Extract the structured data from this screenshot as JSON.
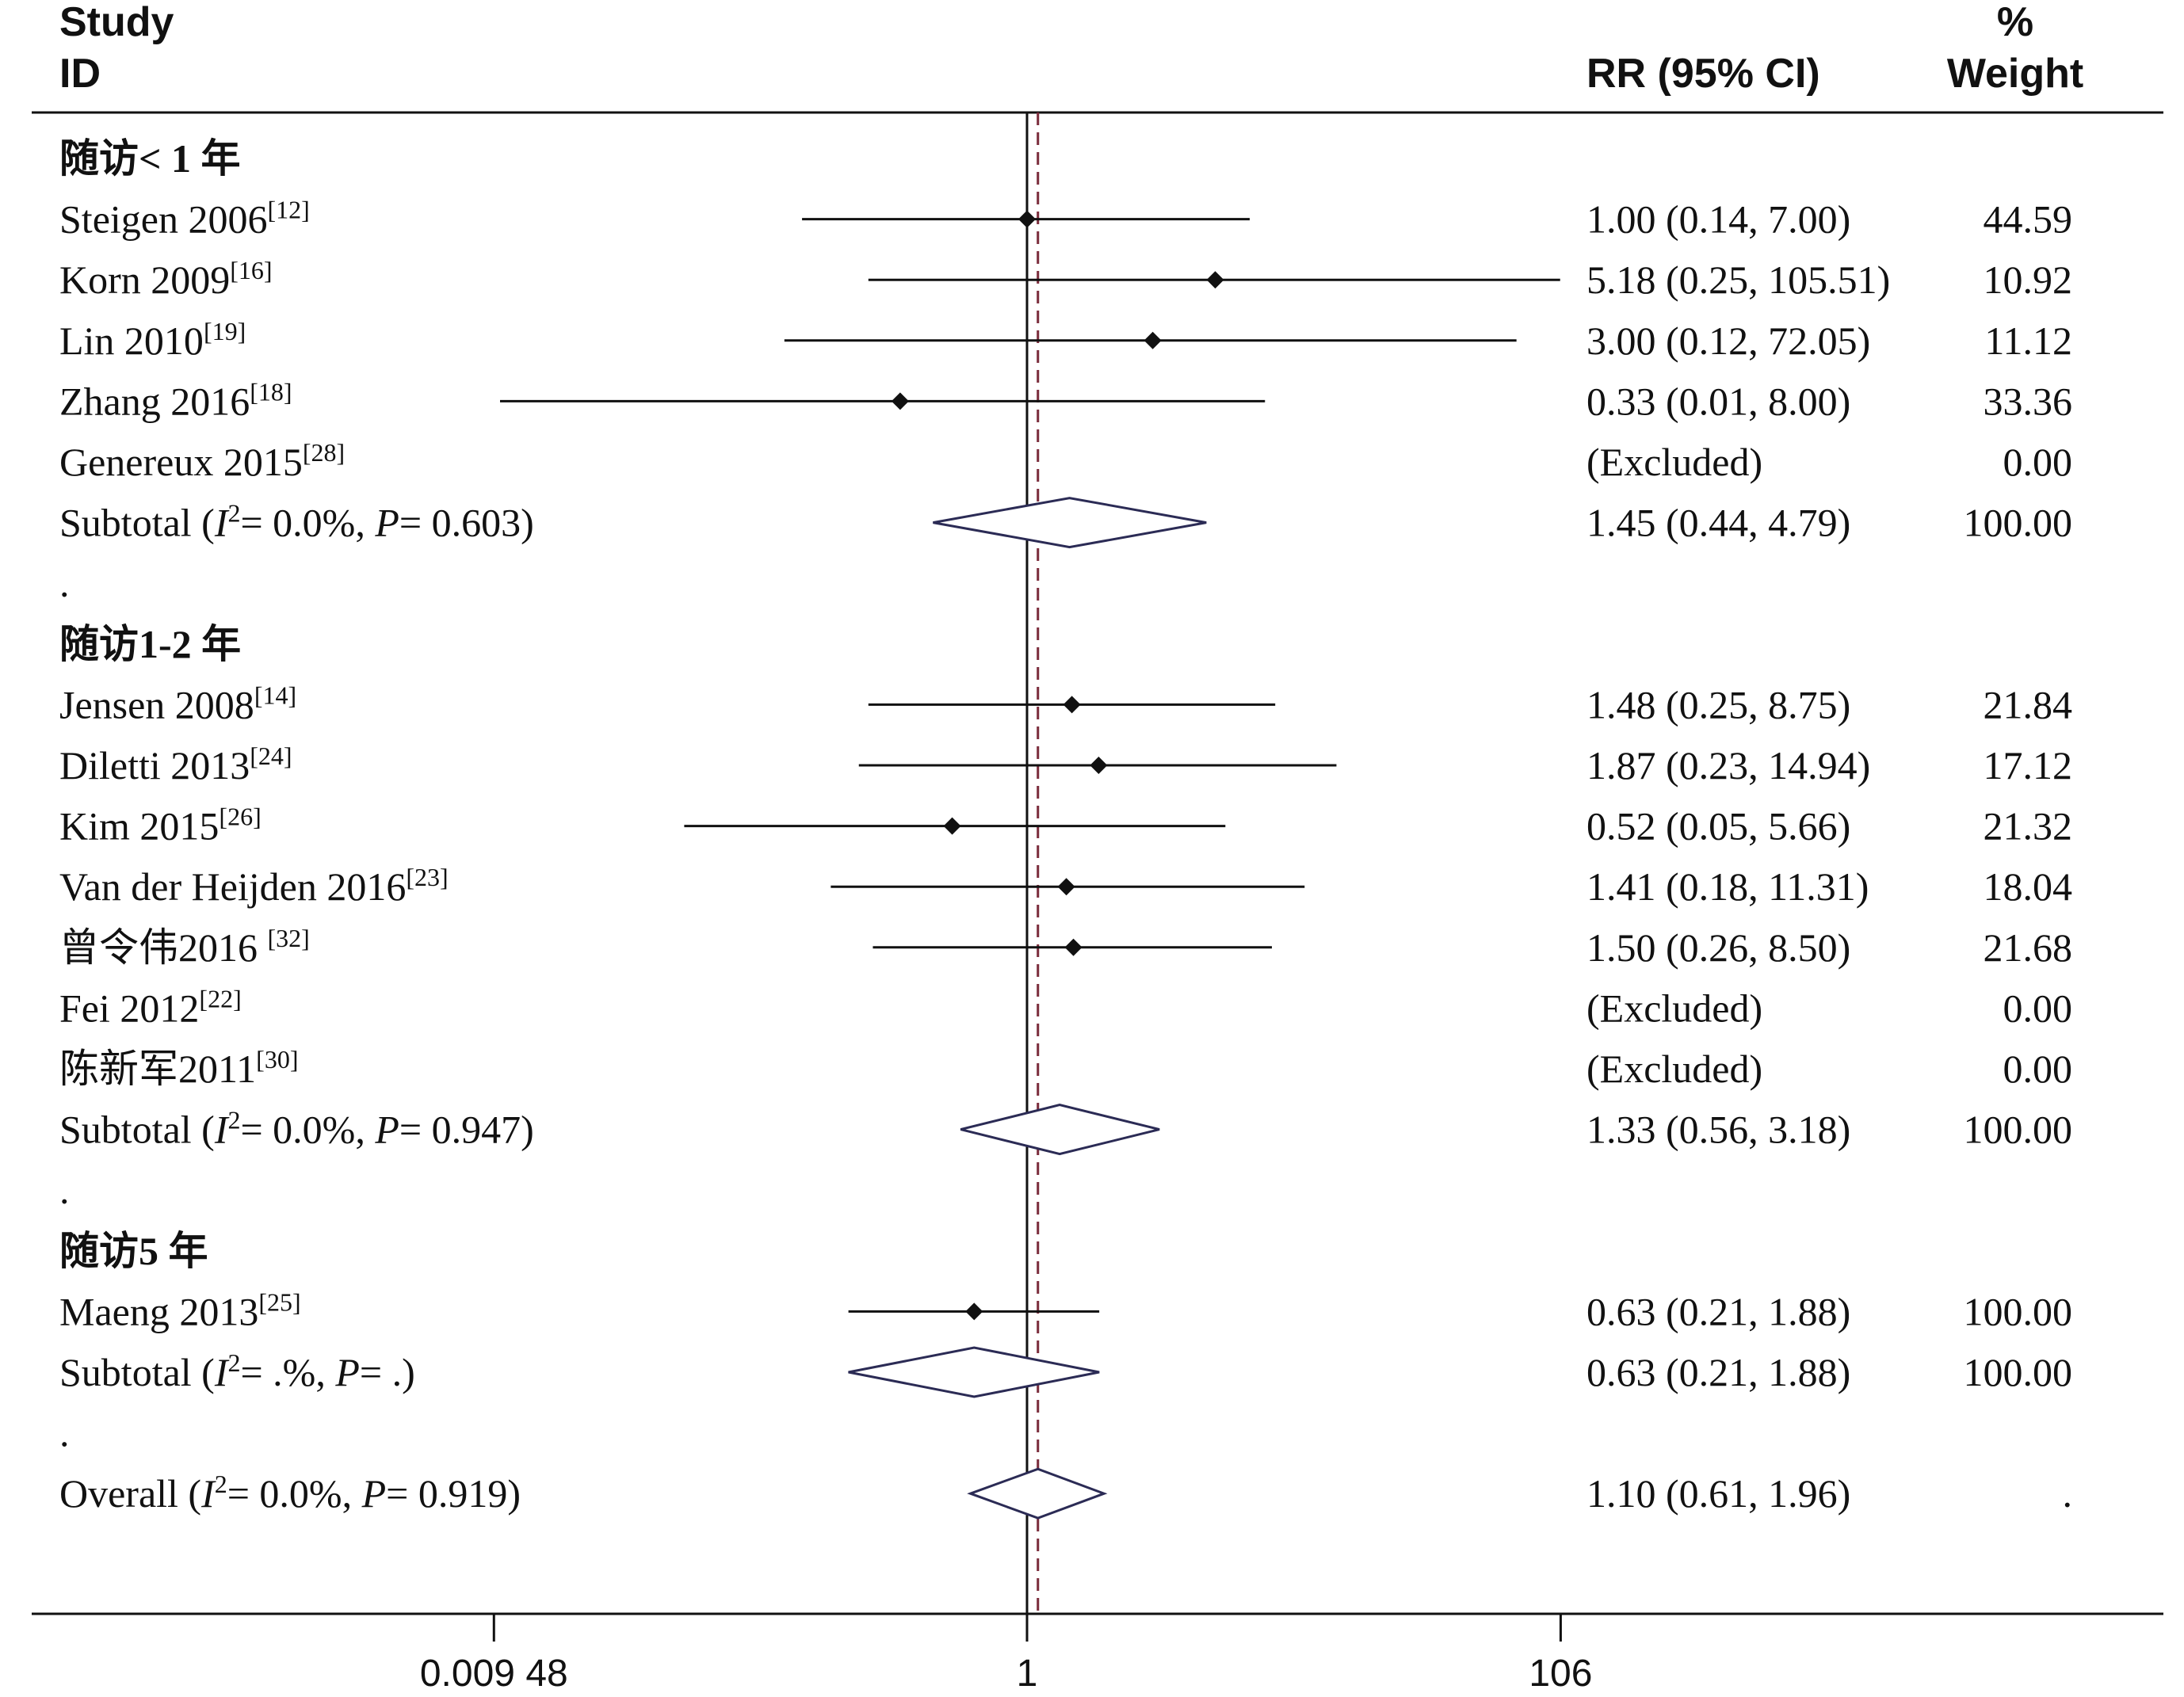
{
  "chart_data": {
    "type": "forest",
    "headers": {
      "study_line1": "Study",
      "study_line2": "ID",
      "effect": "RR (95% CI)",
      "weight_line1": "%",
      "weight_line2": "Weight"
    },
    "xaxis": {
      "scale": "log",
      "ticks": [
        0.00948,
        1,
        106
      ],
      "tick_labels": [
        "0.009 48",
        "1",
        "106"
      ]
    },
    "null_line": 1,
    "overall_line": 1.1,
    "rows": [
      {
        "kind": "group",
        "label": "随访< 1 年"
      },
      {
        "kind": "study",
        "label": "Steigen 2006",
        "ref": "[12]",
        "rr": 1.0,
        "lo": 0.14,
        "hi": 7.0,
        "ci_text": "1.00 (0.14, 7.00)",
        "weight": "44.59"
      },
      {
        "kind": "study",
        "label": "Korn 2009",
        "ref": "[16]",
        "rr": 5.18,
        "lo": 0.25,
        "hi": 105.51,
        "ci_text": "5.18 (0.25, 105.51)",
        "weight": "10.92"
      },
      {
        "kind": "study",
        "label": "Lin 2010",
        "ref": "[19]",
        "rr": 3.0,
        "lo": 0.12,
        "hi": 72.05,
        "ci_text": "3.00 (0.12, 72.05)",
        "weight": "11.12"
      },
      {
        "kind": "study",
        "label": "Zhang 2016",
        "ref": "[18]",
        "rr": 0.33,
        "lo": 0.01,
        "hi": 8.0,
        "ci_text": "0.33 (0.01, 8.00)",
        "weight": "33.36"
      },
      {
        "kind": "excluded",
        "label": "Genereux 2015",
        "ref": "[28]",
        "ci_text": "(Excluded)",
        "weight": "0.00"
      },
      {
        "kind": "subtotal",
        "label": "Subtotal",
        "i2": "0.0%",
        "p": "0.603",
        "rr": 1.45,
        "lo": 0.44,
        "hi": 4.79,
        "ci_text": "1.45 (0.44, 4.79)",
        "weight": "100.00"
      },
      {
        "kind": "dot",
        "label": "."
      },
      {
        "kind": "group",
        "label": "随访1-2 年"
      },
      {
        "kind": "study",
        "label": "Jensen 2008",
        "ref": "[14]",
        "rr": 1.48,
        "lo": 0.25,
        "hi": 8.75,
        "ci_text": "1.48 (0.25, 8.75)",
        "weight": "21.84"
      },
      {
        "kind": "study",
        "label": "Diletti 2013",
        "ref": "[24]",
        "rr": 1.87,
        "lo": 0.23,
        "hi": 14.94,
        "ci_text": "1.87 (0.23, 14.94)",
        "weight": "17.12"
      },
      {
        "kind": "study",
        "label": "Kim 2015",
        "ref": "[26]",
        "rr": 0.52,
        "lo": 0.05,
        "hi": 5.66,
        "ci_text": "0.52 (0.05, 5.66)",
        "weight": "21.32"
      },
      {
        "kind": "study",
        "label": "Van der Heijden 2016",
        "ref": "[23]",
        "rr": 1.41,
        "lo": 0.18,
        "hi": 11.31,
        "ci_text": "1.41 (0.18, 11.31)",
        "weight": "18.04"
      },
      {
        "kind": "study",
        "label": "曾令伟2016 ",
        "ref": "[32]",
        "rr": 1.5,
        "lo": 0.26,
        "hi": 8.5,
        "ci_text": "1.50 (0.26, 8.50)",
        "weight": "21.68"
      },
      {
        "kind": "excluded",
        "label": "Fei 2012",
        "ref": "[22]",
        "ci_text": "(Excluded)",
        "weight": "0.00"
      },
      {
        "kind": "excluded",
        "label": "陈新军2011",
        "ref": "[30]",
        "ci_text": "(Excluded)",
        "weight": "0.00"
      },
      {
        "kind": "subtotal",
        "label": "Subtotal",
        "i2": "0.0%",
        "p": "0.947",
        "rr": 1.33,
        "lo": 0.56,
        "hi": 3.18,
        "ci_text": "1.33 (0.56, 3.18)",
        "weight": "100.00"
      },
      {
        "kind": "dot",
        "label": "."
      },
      {
        "kind": "group",
        "label": "随访5 年"
      },
      {
        "kind": "study",
        "label": "Maeng 2013",
        "ref": "[25]",
        "rr": 0.63,
        "lo": 0.21,
        "hi": 1.88,
        "ci_text": "0.63 (0.21, 1.88)",
        "weight": "100.00"
      },
      {
        "kind": "subtotal",
        "label": "Subtotal",
        "i2": ".%",
        "p": ".",
        "rr": 0.63,
        "lo": 0.21,
        "hi": 1.88,
        "ci_text": "0.63 (0.21, 1.88)",
        "weight": "100.00"
      },
      {
        "kind": "dot",
        "label": "."
      },
      {
        "kind": "overall",
        "label": "Overall",
        "i2": "0.0%",
        "p": "0.919",
        "rr": 1.1,
        "lo": 0.61,
        "hi": 1.96,
        "ci_text": "1.10 (0.61, 1.96)",
        "weight": "."
      }
    ],
    "colors": {
      "text": "#111111",
      "ci_line": "#111111",
      "diamond_stroke": "#2b2b55",
      "overall_dash": "#7a2a3a"
    }
  }
}
